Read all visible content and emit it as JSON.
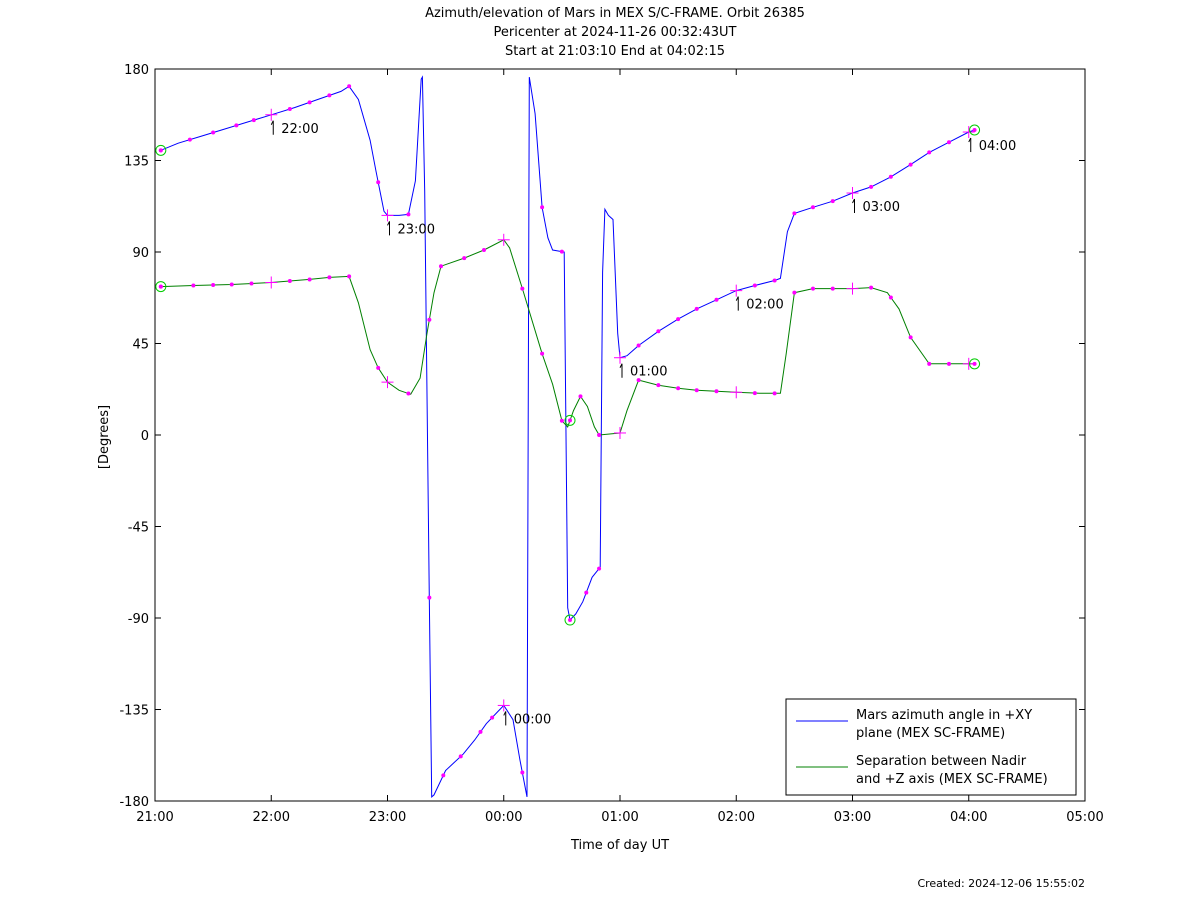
{
  "chart_data": {
    "type": "line",
    "title": "Azimuth/elevation of Mars in MEX S/C-FRAME.  Orbit 26385",
    "subtitle_1": "Pericenter at 2024-11-26 00:32:43UT",
    "subtitle_2": "Start at 21:03:10 End at 04:02:15",
    "xlabel": "Time of day UT",
    "ylabel": "[Degrees]",
    "xlim": [
      21.0,
      29.0
    ],
    "ylim": [
      -180,
      180
    ],
    "x_ticks": [
      21,
      22,
      23,
      24,
      25,
      26,
      27,
      28,
      29
    ],
    "x_tick_labels": [
      "21:00",
      "22:00",
      "23:00",
      "00:00",
      "01:00",
      "02:00",
      "03:00",
      "04:00",
      "05:00"
    ],
    "y_ticks": [
      180,
      135,
      90,
      45,
      0,
      -45,
      -90,
      -135,
      -180
    ],
    "y_tick_labels": [
      "180",
      "135",
      "90",
      "45",
      "0",
      "-45",
      "-90",
      "-135",
      "-180"
    ],
    "legend_position": "bottom-right",
    "series": [
      {
        "name": "Mars azimuth angle in +XY plane (MEX SC-FRAME)",
        "legend_lines": [
          "Mars azimuth angle in +XY",
          "plane (MEX SC-FRAME)"
        ],
        "color": "#0000ff",
        "points": [
          [
            21.05,
            140
          ],
          [
            21.2,
            143.5
          ],
          [
            21.4,
            147
          ],
          [
            21.6,
            150.5
          ],
          [
            21.8,
            154
          ],
          [
            22.0,
            157.5
          ],
          [
            22.2,
            161
          ],
          [
            22.4,
            165
          ],
          [
            22.6,
            169
          ],
          [
            22.67,
            171.5
          ],
          [
            22.75,
            165
          ],
          [
            22.85,
            145
          ],
          [
            22.9,
            130
          ],
          [
            22.97,
            110
          ],
          [
            23.0,
            108
          ],
          [
            23.1,
            108
          ],
          [
            23.18,
            108.5
          ],
          [
            23.24,
            125
          ],
          [
            23.29,
            175
          ],
          [
            23.3,
            176
          ],
          [
            23.32,
            120
          ],
          [
            23.36,
            -80
          ],
          [
            23.38,
            -178
          ],
          [
            23.4,
            -177
          ],
          [
            23.5,
            -165
          ],
          [
            23.65,
            -157
          ],
          [
            23.75,
            -150
          ],
          [
            23.85,
            -142
          ],
          [
            23.95,
            -136
          ],
          [
            24.0,
            -133
          ],
          [
            24.08,
            -140
          ],
          [
            24.14,
            -160
          ],
          [
            24.2,
            -178
          ],
          [
            24.22,
            176
          ],
          [
            24.27,
            158
          ],
          [
            24.33,
            112
          ],
          [
            24.38,
            97
          ],
          [
            24.42,
            91
          ],
          [
            24.52,
            90
          ],
          [
            24.55,
            -85
          ],
          [
            24.57,
            -91
          ],
          [
            24.62,
            -88
          ],
          [
            24.68,
            -82
          ],
          [
            24.76,
            -70
          ],
          [
            24.83,
            -65
          ],
          [
            24.85,
            80
          ],
          [
            24.87,
            111
          ],
          [
            24.9,
            108
          ],
          [
            24.94,
            106
          ],
          [
            24.98,
            50
          ],
          [
            25.0,
            38
          ],
          [
            25.06,
            39
          ],
          [
            25.16,
            44
          ],
          [
            25.33,
            51
          ],
          [
            25.5,
            57
          ],
          [
            25.66,
            62
          ],
          [
            25.83,
            66.5
          ],
          [
            26.0,
            71
          ],
          [
            26.16,
            73.5
          ],
          [
            26.33,
            76
          ],
          [
            26.38,
            77
          ],
          [
            26.44,
            100
          ],
          [
            26.5,
            109
          ],
          [
            26.66,
            112
          ],
          [
            26.83,
            115
          ],
          [
            27.0,
            119
          ],
          [
            27.16,
            122
          ],
          [
            27.33,
            127
          ],
          [
            27.5,
            133
          ],
          [
            27.66,
            139
          ],
          [
            27.83,
            144
          ],
          [
            28.0,
            149
          ],
          [
            28.05,
            150
          ]
        ],
        "markers_x": [
          21.05,
          21.3,
          21.5,
          21.7,
          21.85,
          22.16,
          22.33,
          22.5,
          22.67,
          22.92,
          23.18,
          23.36,
          23.48,
          23.63,
          23.8,
          23.9,
          24.16,
          24.33,
          24.5,
          24.71,
          24.82,
          25.16,
          25.33,
          25.5,
          25.66,
          25.83,
          26.16,
          26.33,
          26.5,
          26.66,
          26.83,
          27.16,
          27.33,
          27.5,
          27.66,
          27.83
        ],
        "plus_markers_x": [
          22.0,
          23.0,
          24.0,
          25.0,
          26.0,
          27.0,
          28.0
        ],
        "circle_markers_x": [
          21.05,
          24.57,
          28.05
        ]
      },
      {
        "name": "Separation between Nadir and +Z axis (MEX SC-FRAME)",
        "legend_lines": [
          "Separation between Nadir",
          "and +Z axis (MEX SC-FRAME)"
        ],
        "color": "#008000",
        "points": [
          [
            21.05,
            73
          ],
          [
            21.33,
            73.5
          ],
          [
            21.66,
            74
          ],
          [
            22.0,
            75
          ],
          [
            22.33,
            76.5
          ],
          [
            22.5,
            77.5
          ],
          [
            22.67,
            78
          ],
          [
            22.75,
            65
          ],
          [
            22.85,
            42
          ],
          [
            22.92,
            33
          ],
          [
            23.0,
            26
          ],
          [
            23.1,
            22
          ],
          [
            23.2,
            20
          ],
          [
            23.28,
            28
          ],
          [
            23.34,
            50
          ],
          [
            23.4,
            70
          ],
          [
            23.46,
            83
          ],
          [
            23.66,
            87
          ],
          [
            23.83,
            91
          ],
          [
            24.0,
            96
          ],
          [
            24.05,
            92
          ],
          [
            24.16,
            72
          ],
          [
            24.33,
            40
          ],
          [
            24.42,
            25
          ],
          [
            24.5,
            7
          ],
          [
            24.55,
            4
          ],
          [
            24.6,
            12
          ],
          [
            24.66,
            19
          ],
          [
            24.72,
            14
          ],
          [
            24.78,
            4
          ],
          [
            24.82,
            0
          ],
          [
            25.0,
            1
          ],
          [
            25.06,
            12
          ],
          [
            25.16,
            27
          ],
          [
            25.33,
            24.5
          ],
          [
            25.5,
            23
          ],
          [
            25.66,
            22
          ],
          [
            25.83,
            21.5
          ],
          [
            26.0,
            21
          ],
          [
            26.2,
            20.5
          ],
          [
            26.38,
            20.5
          ],
          [
            26.43,
            40
          ],
          [
            26.5,
            70
          ],
          [
            26.66,
            72
          ],
          [
            26.83,
            72
          ],
          [
            27.0,
            72
          ],
          [
            27.16,
            72.5
          ],
          [
            27.3,
            70
          ],
          [
            27.4,
            62
          ],
          [
            27.5,
            48
          ],
          [
            27.66,
            35
          ],
          [
            27.83,
            35
          ],
          [
            28.05,
            35
          ]
        ],
        "markers_x": [
          21.05,
          21.33,
          21.5,
          21.66,
          21.83,
          22.16,
          22.33,
          22.5,
          22.67,
          22.92,
          23.18,
          23.36,
          23.46,
          23.66,
          23.83,
          24.16,
          24.33,
          24.5,
          24.66,
          24.82,
          25.16,
          25.33,
          25.5,
          25.66,
          25.83,
          26.16,
          26.33,
          26.5,
          26.66,
          26.83,
          27.16,
          27.33,
          27.5,
          27.66,
          27.83
        ],
        "plus_markers_x": [
          22.0,
          23.0,
          24.0,
          25.0,
          26.0,
          27.0,
          28.0
        ],
        "circle_markers_x": [
          21.05,
          24.57,
          28.05
        ]
      }
    ],
    "hour_annotations": [
      {
        "label": "22:00",
        "x": 22.0,
        "y": 157.5
      },
      {
        "label": "23:00",
        "x": 23.0,
        "y": 108
      },
      {
        "label": "00:00",
        "x": 24.0,
        "y": -133
      },
      {
        "label": "01:00",
        "x": 25.0,
        "y": 38
      },
      {
        "label": "02:00",
        "x": 26.0,
        "y": 71
      },
      {
        "label": "03:00",
        "x": 27.0,
        "y": 119
      },
      {
        "label": "04:00",
        "x": 28.0,
        "y": 149
      }
    ]
  },
  "footer": {
    "created": "Created: 2024-12-06 15:55:02"
  }
}
